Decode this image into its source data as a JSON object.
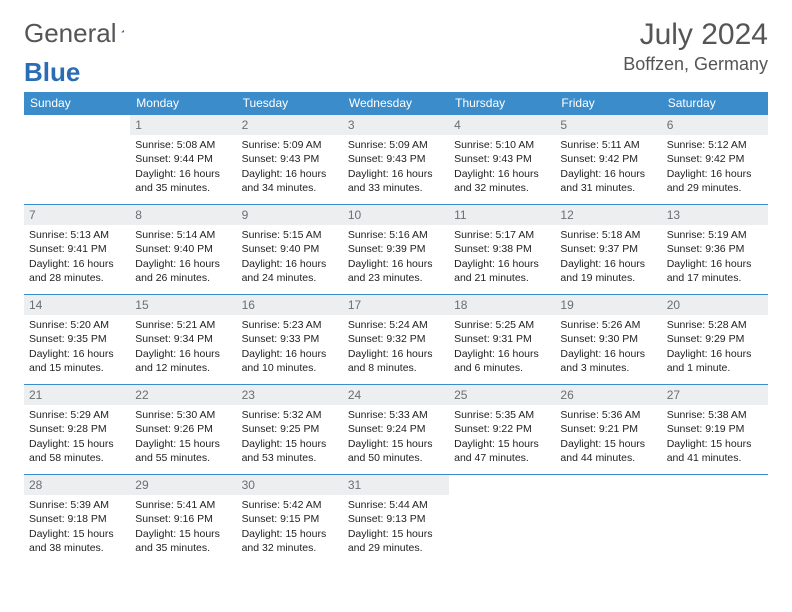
{
  "logo": {
    "part1": "General",
    "part2": "Blue"
  },
  "title": "July 2024",
  "location": "Boffzen, Germany",
  "colors": {
    "header_bg": "#3b8ccb",
    "header_text": "#ffffff",
    "daynum_bg": "#eceef0",
    "daynum_text": "#6a6f74",
    "border": "#3b8ccb",
    "logo_accent": "#2a6db5"
  },
  "weekdays": [
    "Sunday",
    "Monday",
    "Tuesday",
    "Wednesday",
    "Thursday",
    "Friday",
    "Saturday"
  ],
  "start_offset": 1,
  "days": [
    {
      "n": "1",
      "sunrise": "5:08 AM",
      "sunset": "9:44 PM",
      "daylight": "16 hours and 35 minutes."
    },
    {
      "n": "2",
      "sunrise": "5:09 AM",
      "sunset": "9:43 PM",
      "daylight": "16 hours and 34 minutes."
    },
    {
      "n": "3",
      "sunrise": "5:09 AM",
      "sunset": "9:43 PM",
      "daylight": "16 hours and 33 minutes."
    },
    {
      "n": "4",
      "sunrise": "5:10 AM",
      "sunset": "9:43 PM",
      "daylight": "16 hours and 32 minutes."
    },
    {
      "n": "5",
      "sunrise": "5:11 AM",
      "sunset": "9:42 PM",
      "daylight": "16 hours and 31 minutes."
    },
    {
      "n": "6",
      "sunrise": "5:12 AM",
      "sunset": "9:42 PM",
      "daylight": "16 hours and 29 minutes."
    },
    {
      "n": "7",
      "sunrise": "5:13 AM",
      "sunset": "9:41 PM",
      "daylight": "16 hours and 28 minutes."
    },
    {
      "n": "8",
      "sunrise": "5:14 AM",
      "sunset": "9:40 PM",
      "daylight": "16 hours and 26 minutes."
    },
    {
      "n": "9",
      "sunrise": "5:15 AM",
      "sunset": "9:40 PM",
      "daylight": "16 hours and 24 minutes."
    },
    {
      "n": "10",
      "sunrise": "5:16 AM",
      "sunset": "9:39 PM",
      "daylight": "16 hours and 23 minutes."
    },
    {
      "n": "11",
      "sunrise": "5:17 AM",
      "sunset": "9:38 PM",
      "daylight": "16 hours and 21 minutes."
    },
    {
      "n": "12",
      "sunrise": "5:18 AM",
      "sunset": "9:37 PM",
      "daylight": "16 hours and 19 minutes."
    },
    {
      "n": "13",
      "sunrise": "5:19 AM",
      "sunset": "9:36 PM",
      "daylight": "16 hours and 17 minutes."
    },
    {
      "n": "14",
      "sunrise": "5:20 AM",
      "sunset": "9:35 PM",
      "daylight": "16 hours and 15 minutes."
    },
    {
      "n": "15",
      "sunrise": "5:21 AM",
      "sunset": "9:34 PM",
      "daylight": "16 hours and 12 minutes."
    },
    {
      "n": "16",
      "sunrise": "5:23 AM",
      "sunset": "9:33 PM",
      "daylight": "16 hours and 10 minutes."
    },
    {
      "n": "17",
      "sunrise": "5:24 AM",
      "sunset": "9:32 PM",
      "daylight": "16 hours and 8 minutes."
    },
    {
      "n": "18",
      "sunrise": "5:25 AM",
      "sunset": "9:31 PM",
      "daylight": "16 hours and 6 minutes."
    },
    {
      "n": "19",
      "sunrise": "5:26 AM",
      "sunset": "9:30 PM",
      "daylight": "16 hours and 3 minutes."
    },
    {
      "n": "20",
      "sunrise": "5:28 AM",
      "sunset": "9:29 PM",
      "daylight": "16 hours and 1 minute."
    },
    {
      "n": "21",
      "sunrise": "5:29 AM",
      "sunset": "9:28 PM",
      "daylight": "15 hours and 58 minutes."
    },
    {
      "n": "22",
      "sunrise": "5:30 AM",
      "sunset": "9:26 PM",
      "daylight": "15 hours and 55 minutes."
    },
    {
      "n": "23",
      "sunrise": "5:32 AM",
      "sunset": "9:25 PM",
      "daylight": "15 hours and 53 minutes."
    },
    {
      "n": "24",
      "sunrise": "5:33 AM",
      "sunset": "9:24 PM",
      "daylight": "15 hours and 50 minutes."
    },
    {
      "n": "25",
      "sunrise": "5:35 AM",
      "sunset": "9:22 PM",
      "daylight": "15 hours and 47 minutes."
    },
    {
      "n": "26",
      "sunrise": "5:36 AM",
      "sunset": "9:21 PM",
      "daylight": "15 hours and 44 minutes."
    },
    {
      "n": "27",
      "sunrise": "5:38 AM",
      "sunset": "9:19 PM",
      "daylight": "15 hours and 41 minutes."
    },
    {
      "n": "28",
      "sunrise": "5:39 AM",
      "sunset": "9:18 PM",
      "daylight": "15 hours and 38 minutes."
    },
    {
      "n": "29",
      "sunrise": "5:41 AM",
      "sunset": "9:16 PM",
      "daylight": "15 hours and 35 minutes."
    },
    {
      "n": "30",
      "sunrise": "5:42 AM",
      "sunset": "9:15 PM",
      "daylight": "15 hours and 32 minutes."
    },
    {
      "n": "31",
      "sunrise": "5:44 AM",
      "sunset": "9:13 PM",
      "daylight": "15 hours and 29 minutes."
    }
  ],
  "labels": {
    "sunrise": "Sunrise:",
    "sunset": "Sunset:",
    "daylight": "Daylight:"
  }
}
